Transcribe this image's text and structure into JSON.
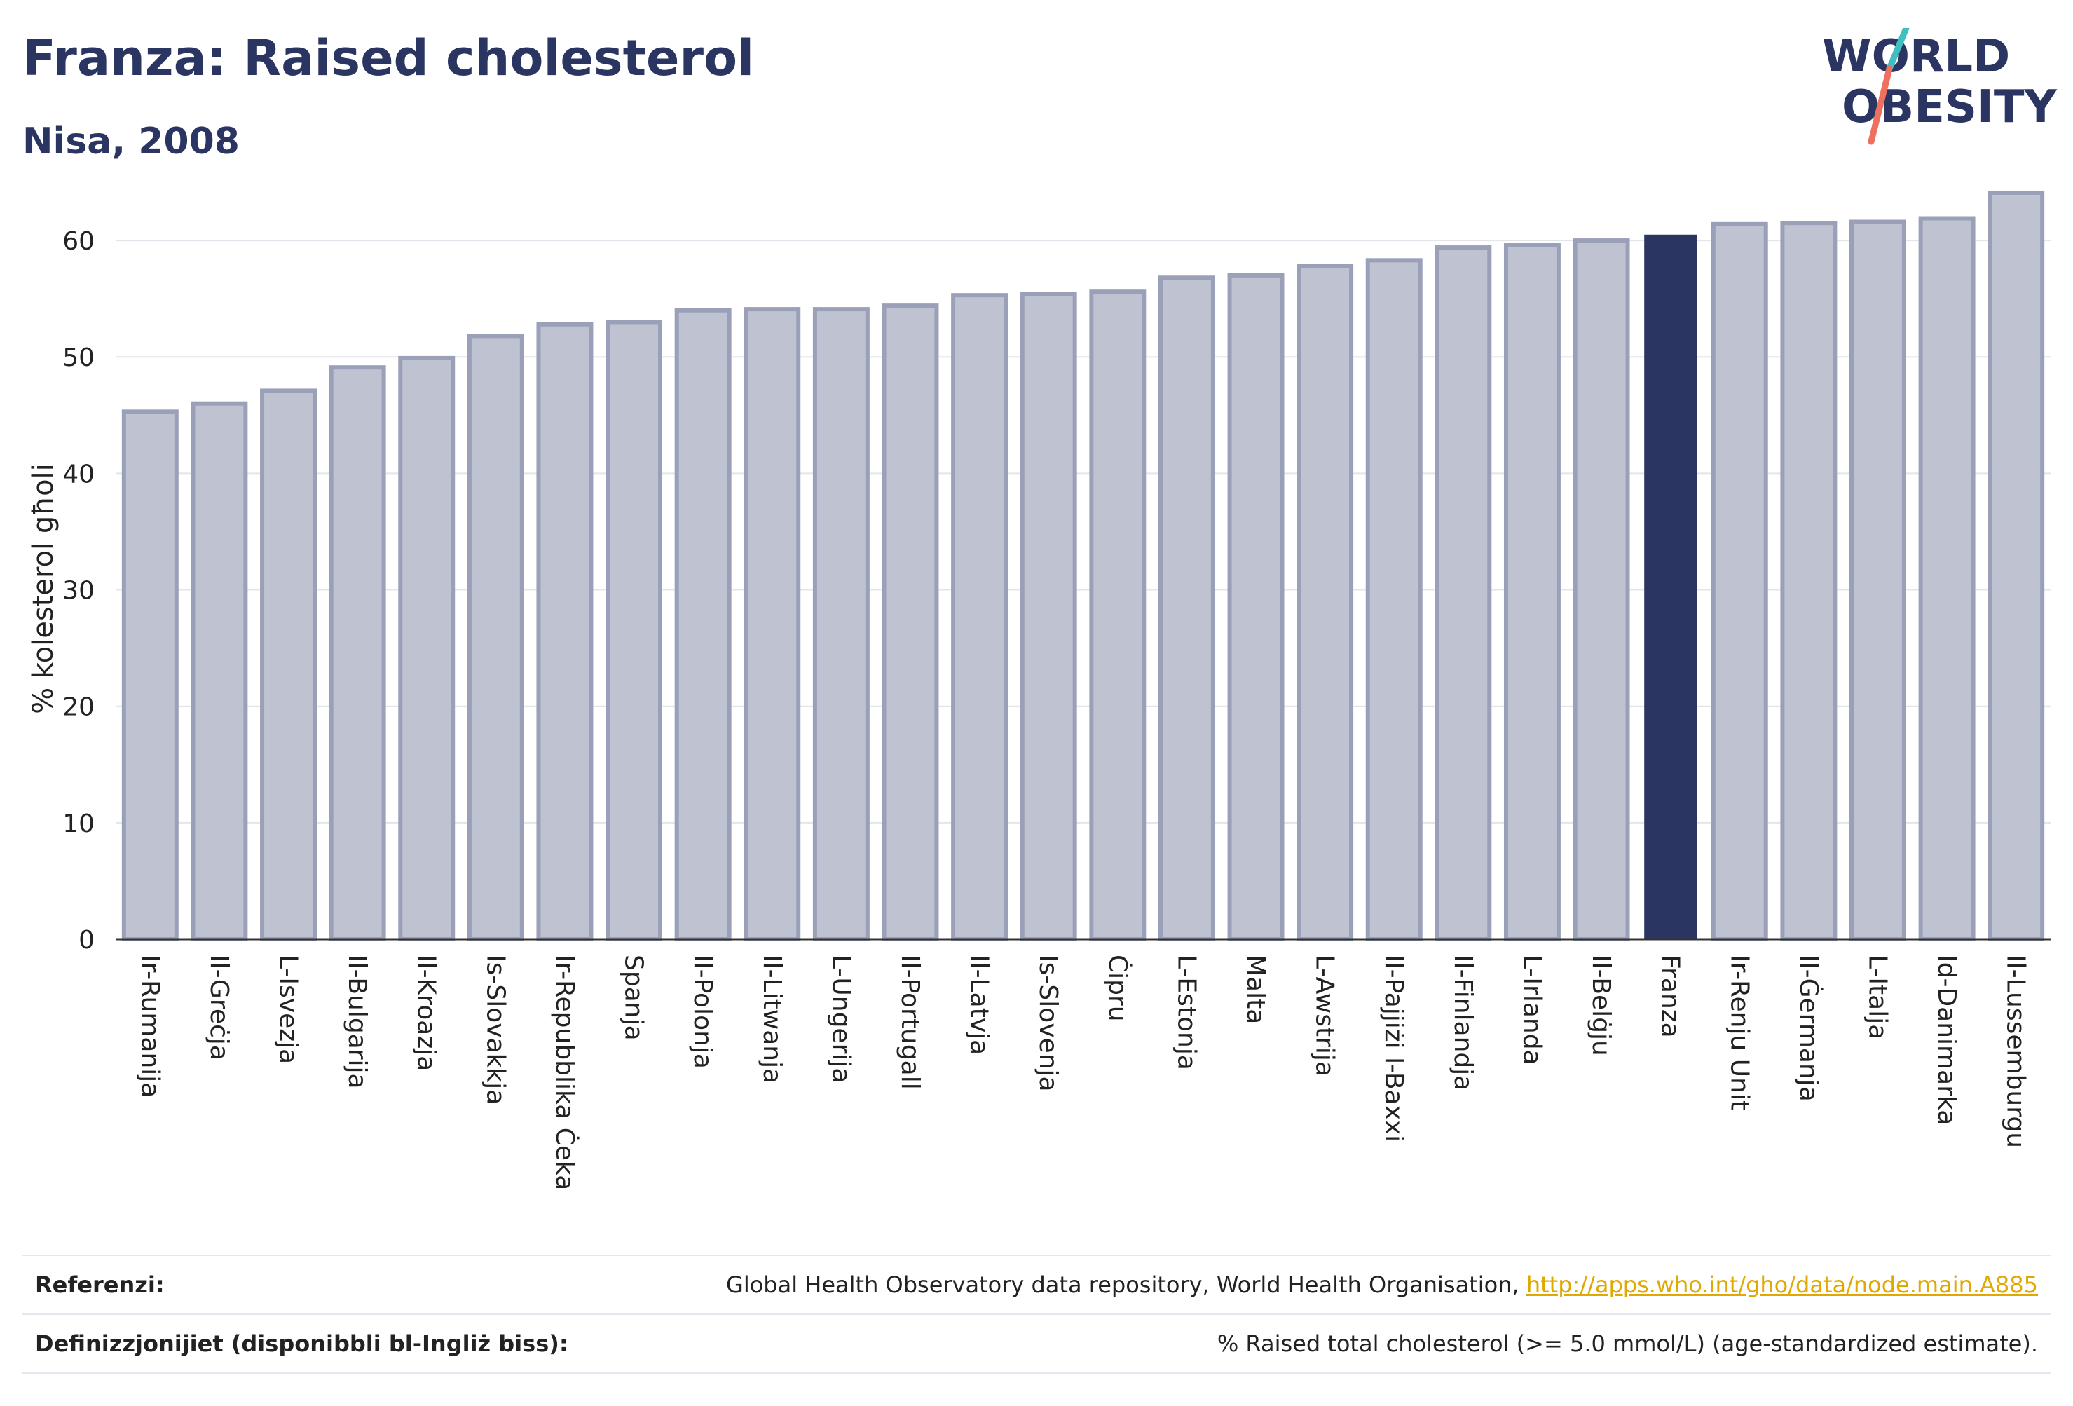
{
  "header": {
    "title": "Franza: Raised cholesterol",
    "subtitle": "Nisa, 2008"
  },
  "logo": {
    "line1": "WORLD",
    "line2": "OBESITY"
  },
  "colors": {
    "highlight": "#2b3562",
    "bar_fill": "#bfc2d0",
    "bar_stroke": "#9aa0b8",
    "grid": "#e3e5ec",
    "link": "#e0a800",
    "logo_slash_top": "#3fbfbf",
    "logo_slash_bottom": "#f07060"
  },
  "chart_data": {
    "type": "bar",
    "ylabel": "% kolesterol għoli",
    "xlabel": "",
    "ylim": [
      0,
      65
    ],
    "yticks": [
      0,
      10,
      20,
      30,
      40,
      50,
      60
    ],
    "grid": true,
    "highlight": "Franza",
    "categories": [
      "Ir-Rumanija",
      "Il-Greċja",
      "L-Isvezja",
      "Il-Bulgarija",
      "Il-Kroazja",
      "Is-Slovakkja",
      "Ir-Repubblika Ċeka",
      "Spanja",
      "Il-Polonja",
      "Il-Litwanja",
      "L-Ungerija",
      "Il-Portugall",
      "Il-Latvja",
      "Is-Slovenja",
      "Ċipru",
      "L-Estonja",
      "Malta",
      "L-Awstrija",
      "Il-Pajjiżi l-Baxxi",
      "Il-Finlandja",
      "L-Irlanda",
      "Il-Belġju",
      "Franza",
      "Ir-Renju Unit",
      "Il-Ġermanja",
      "L-Italja",
      "Id-Danimarka",
      "Il-Lussemburgu"
    ],
    "values": [
      45.3,
      46.0,
      47.1,
      49.1,
      49.9,
      51.8,
      52.8,
      53.0,
      54.0,
      54.1,
      54.1,
      54.4,
      55.3,
      55.4,
      55.6,
      56.8,
      57.0,
      57.8,
      58.3,
      59.4,
      59.6,
      60.0,
      60.5,
      61.4,
      61.5,
      61.6,
      61.9,
      64.1
    ]
  },
  "footer": {
    "references_label": "Referenzi:",
    "references_text": "Global Health Observatory data repository, World Health Organisation, ",
    "references_link": "http://apps.who.int/gho/data/node.main.A885",
    "definitions_label": "Definizzjonijiet (disponibbli bl-Ingliż biss):",
    "definitions_text": "% Raised total cholesterol (>= 5.0 mmol/L) (age-standardized estimate)."
  }
}
